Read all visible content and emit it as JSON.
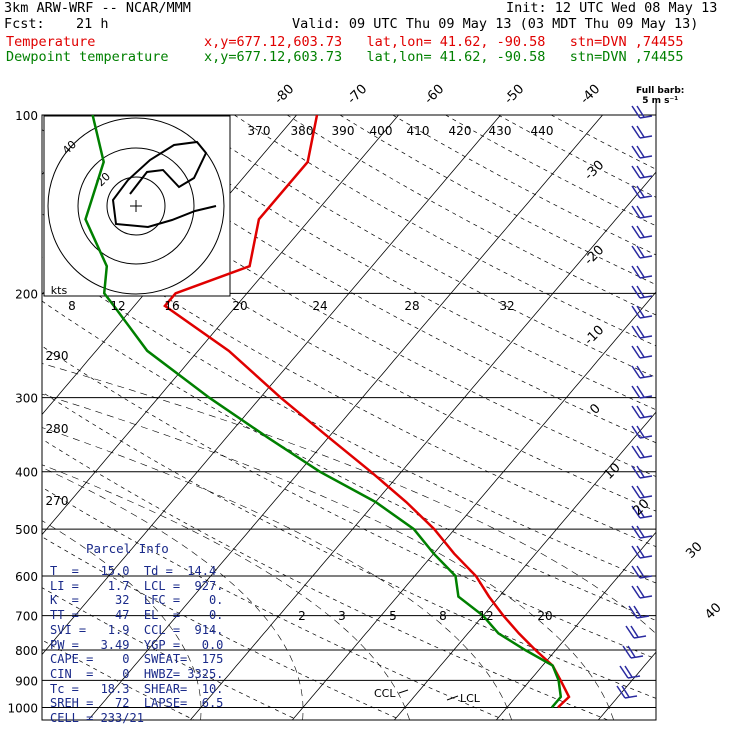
{
  "header": {
    "model": "3km ARW-WRF -- NCAR/MMM",
    "init": "Init: 12 UTC Wed 08 May 13",
    "fcst_label": "Fcst:",
    "fcst_value": "21 h",
    "valid": "Valid: 09 UTC Thu 09 May 13 (03 MDT Thu 09 May 13)",
    "temp_label": "Temperature",
    "temp_loc": "x,y=677.12,603.73   lat,lon= 41.62, -90.58   stn=DVN ,74455",
    "dew_label": "Dewpoint temperature",
    "dew_loc": "x,y=677.12,603.73   lat,lon= 41.62, -90.58   stn=DVN ,74455"
  },
  "colors": {
    "temperature": "#e00000",
    "dewpoint": "#008000",
    "barbs": "#2a2aa0",
    "parcel_text": "#1a2a8a"
  },
  "full_barb_label": "Full barb:",
  "full_barb_value": "5 m s⁻¹",
  "hodograph": {
    "unit": "kts",
    "ring_labels": [
      "20",
      "40"
    ]
  },
  "labels": {
    "ccl": "CCL",
    "lcl": "LCL"
  },
  "chart_data": {
    "type": "line",
    "pressure_ticks": [
      100,
      200,
      300,
      400,
      500,
      600,
      700,
      800,
      900,
      1000
    ],
    "isotherm_labels": [
      "-80",
      "-70",
      "-60",
      "-50",
      "-40",
      "-30",
      "-20",
      "-10",
      "0",
      "10",
      "20",
      "30",
      "40"
    ],
    "theta_labels": [
      "370",
      "380",
      "390",
      "400",
      "410",
      "420",
      "430",
      "440",
      "290",
      "280",
      "270"
    ],
    "mixing_ratio_labels_upper": [
      "8",
      "12",
      "16",
      "20",
      "24",
      "28",
      "32"
    ],
    "mixing_ratio_labels_lower": [
      "2",
      "3",
      "5",
      "8",
      "12",
      "20"
    ],
    "series": [
      {
        "name": "Temperature",
        "points": [
          [
            1000,
            15
          ],
          [
            960,
            15.2
          ],
          [
            900,
            13
          ],
          [
            850,
            11
          ],
          [
            800,
            8
          ],
          [
            750,
            5
          ],
          [
            700,
            2
          ],
          [
            650,
            -1
          ],
          [
            600,
            -4
          ],
          [
            550,
            -8
          ],
          [
            500,
            -12
          ],
          [
            450,
            -17
          ],
          [
            400,
            -23
          ],
          [
            350,
            -30
          ],
          [
            300,
            -38
          ],
          [
            250,
            -47
          ],
          [
            210,
            -57
          ],
          [
            200,
            -57
          ],
          [
            180,
            -52
          ],
          [
            150,
            -55
          ],
          [
            120,
            -55
          ],
          [
            100,
            -58
          ]
        ]
      },
      {
        "name": "Dewpoint temperature",
        "points": [
          [
            1000,
            14.4
          ],
          [
            960,
            14.4
          ],
          [
            900,
            12.8
          ],
          [
            850,
            11
          ],
          [
            800,
            7
          ],
          [
            750,
            3
          ],
          [
            700,
            0
          ],
          [
            650,
            -4
          ],
          [
            600,
            -6
          ],
          [
            550,
            -10
          ],
          [
            500,
            -14
          ],
          [
            450,
            -20
          ],
          [
            400,
            -28
          ],
          [
            350,
            -36
          ],
          [
            300,
            -45
          ],
          [
            250,
            -55
          ],
          [
            210,
            -62
          ],
          [
            200,
            -64
          ],
          [
            180,
            -66
          ],
          [
            150,
            -72
          ],
          [
            120,
            -75
          ],
          [
            100,
            -80
          ]
        ]
      }
    ]
  },
  "parcel_info": {
    "title": "Parcel Info",
    "rows": [
      "T  =   15.0  Td =  14.4",
      "LI =    1.7  LCL =  927.",
      "K  =     32  LFC =    0.",
      "TT =     47  EL  =    0.",
      "SVI =   1.9  CCL =  914.",
      "PW =   3.49  YGP =   0.0",
      "CAPE =    0  SWEAT=  175",
      "CIN  =    0  HWBZ= 3325.",
      "Tc =   18.3  SHEAR=  10.",
      "SREH =   72  LAPSE=  6.5",
      "CELL = 233/21"
    ]
  }
}
